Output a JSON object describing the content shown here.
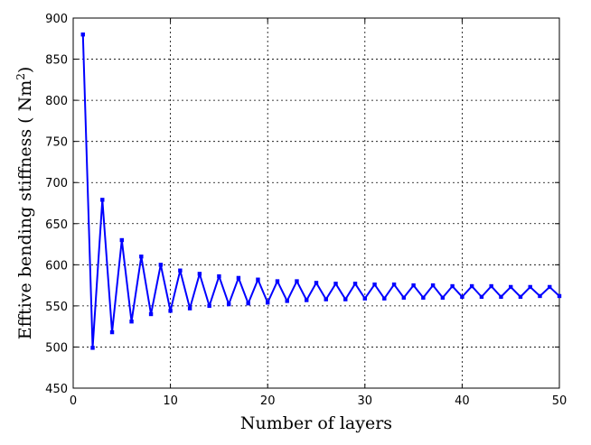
{
  "chart_data": {
    "type": "line",
    "xlabel": "Number of layers",
    "ylabel": "Efftive bending stiffness ( Nm",
    "ylabel_superscript": "2",
    "ylabel_suffix": ")",
    "xlim": [
      0,
      50
    ],
    "ylim": [
      450,
      900
    ],
    "xticks": [
      0,
      10,
      20,
      30,
      40,
      50
    ],
    "yticks": [
      450,
      500,
      550,
      600,
      650,
      700,
      750,
      800,
      850,
      900
    ],
    "grid": true,
    "legend": "none",
    "series": [
      {
        "color": "#0000ff",
        "marker": "square",
        "x": [
          1,
          2,
          3,
          4,
          5,
          6,
          7,
          8,
          9,
          10,
          11,
          12,
          13,
          14,
          15,
          16,
          17,
          18,
          19,
          20,
          21,
          22,
          23,
          24,
          25,
          26,
          27,
          28,
          29,
          30,
          31,
          32,
          33,
          34,
          35,
          36,
          37,
          38,
          39,
          40,
          41,
          42,
          43,
          44,
          45,
          46,
          47,
          48,
          49,
          50
        ],
        "y": [
          880,
          499,
          679,
          518,
          630,
          531,
          610,
          540,
          600,
          544,
          593,
          547,
          589,
          550,
          586,
          552,
          584,
          553,
          582,
          554,
          580,
          556,
          580,
          557,
          578,
          558,
          577,
          558,
          577,
          559,
          576,
          559,
          576,
          560,
          575,
          560,
          575,
          560,
          574,
          561,
          574,
          561,
          574,
          561,
          573,
          561,
          573,
          562,
          573,
          562
        ]
      }
    ]
  }
}
